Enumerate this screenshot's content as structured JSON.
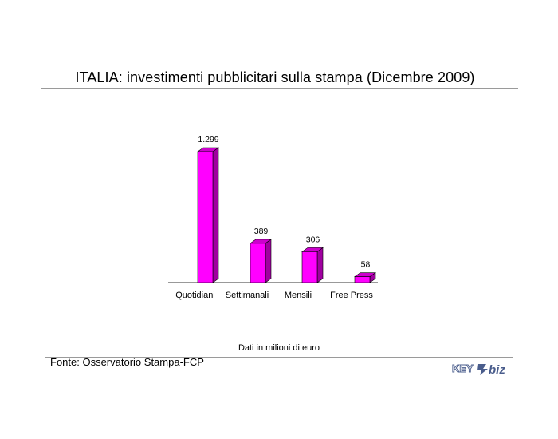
{
  "chart_data": {
    "type": "bar",
    "title": "ITALIA: investimenti pubblicitari sulla stampa (Dicembre 2009)",
    "categories": [
      "Quotidiani",
      "Settimanali",
      "Mensili",
      "Free Press"
    ],
    "values": [
      1299,
      389,
      306,
      58
    ],
    "data_labels": [
      "1.299",
      "389",
      "306",
      "58"
    ],
    "units_note": "Dati in milioni di euro",
    "bar_color": "#ff00ff",
    "bar_side_color": "#a000a0",
    "bar_top_color": "#cc00cc",
    "style": "3d"
  },
  "source": "Fonte: Osservatorio Stampa-FCP",
  "logo": {
    "text_left": "KEY",
    "text_right": "biz",
    "color": "#4a5d8c"
  }
}
